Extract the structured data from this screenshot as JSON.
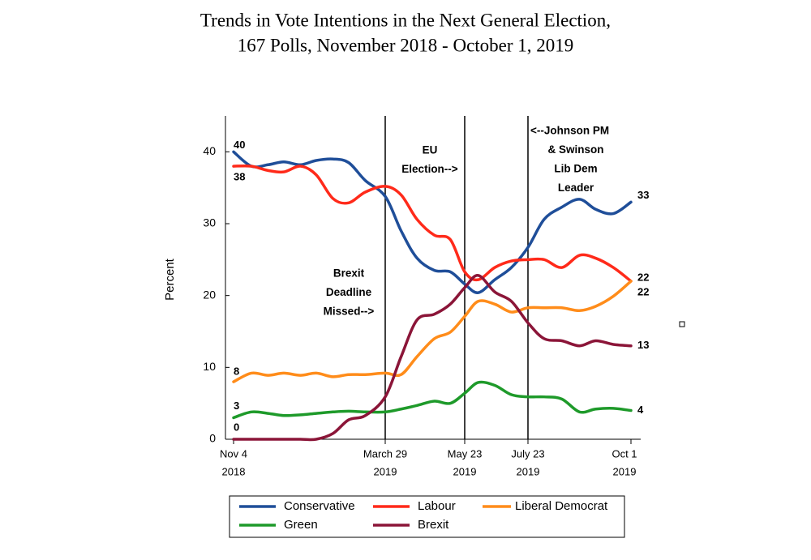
{
  "chart_data": {
    "type": "line",
    "title": "Trends in Vote Intentions in the Next General Election,",
    "subtitle": "167 Polls, November 2018 - October 1, 2019",
    "y_label": "Percent",
    "x": [
      "2018-11-04",
      "2018-11-21",
      "2018-12-07",
      "2018-12-22",
      "2019-01-07",
      "2019-01-22",
      "2019-02-07",
      "2019-02-22",
      "2019-03-10",
      "2019-03-29",
      "2019-04-09",
      "2019-04-20",
      "2019-05-02",
      "2019-05-13",
      "2019-05-23",
      "2019-06-05",
      "2019-06-21",
      "2019-07-07",
      "2019-07-23",
      "2019-08-03",
      "2019-08-15",
      "2019-08-27",
      "2019-09-07",
      "2019-09-19",
      "2019-10-01"
    ],
    "series": [
      {
        "name": "Conservative",
        "color": "#1f4e99",
        "values": [
          40,
          38,
          38.2,
          38.6,
          38.2,
          38.8,
          39,
          38.5,
          36,
          33.8,
          29,
          25.2,
          23.5,
          23.3,
          21.6,
          20.4,
          22.2,
          23.9,
          26.7,
          30.6,
          32.3,
          33.4,
          32,
          31.4,
          33
        ]
      },
      {
        "name": "Labour",
        "color": "#ff2a1a",
        "values": [
          38,
          38,
          37.4,
          37.2,
          38,
          36.8,
          33.5,
          32.9,
          34.4,
          35.2,
          34,
          30.6,
          28.4,
          27.8,
          23.3,
          22.2,
          23.9,
          24.8,
          25,
          25,
          23.9,
          25.6,
          25.2,
          23.9,
          22
        ]
      },
      {
        "name": "Liberal Democrat",
        "color": "#ff8c1a",
        "values": [
          8,
          9.2,
          8.9,
          9.2,
          8.9,
          9.2,
          8.7,
          9,
          9,
          9.2,
          9,
          11.5,
          14,
          14.9,
          17.1,
          19.2,
          18.8,
          17.7,
          18.3,
          18.3,
          18.3,
          17.9,
          18.5,
          19.9,
          22
        ]
      },
      {
        "name": "Green",
        "color": "#1e9a2a",
        "values": [
          3,
          3.8,
          3.6,
          3.3,
          3.4,
          3.6,
          3.8,
          3.9,
          3.8,
          3.8,
          4.2,
          4.7,
          5.3,
          5,
          6.4,
          7.9,
          7.5,
          6.2,
          5.9,
          5.9,
          5.6,
          3.8,
          4.2,
          4.3,
          4
        ]
      },
      {
        "name": "Brexit",
        "color": "#8b1538",
        "values": [
          0,
          0,
          0,
          0,
          0,
          0,
          0.8,
          2.7,
          3.3,
          5.9,
          11.5,
          16.6,
          17.4,
          18.8,
          21.1,
          22.8,
          20.5,
          19.2,
          16.2,
          14,
          13.7,
          13,
          13.7,
          13.2,
          13
        ]
      }
    ],
    "xticks": [
      {
        "value": "2018-11-04",
        "label": [
          "Nov 4",
          "2018"
        ]
      },
      {
        "value": "2019-03-29",
        "label": [
          "March 29",
          "2019"
        ]
      },
      {
        "value": "2019-05-23",
        "label": [
          "May 23",
          "2019"
        ]
      },
      {
        "value": "2019-07-23",
        "label": [
          "July 23",
          "2019"
        ]
      },
      {
        "value": "2019-10-01",
        "label": [
          "Oct 1",
          "2019"
        ]
      }
    ],
    "ylim": [
      0,
      45
    ],
    "yticks": [
      0,
      10,
      20,
      30,
      40
    ],
    "vlines": [
      "2019-03-29",
      "2019-05-23",
      "2019-07-23"
    ],
    "annotations": [
      [
        "Brexit",
        "Deadline",
        "Missed-->"
      ],
      [
        "EU",
        "Election-->"
      ],
      [
        "<--Johnson PM",
        "& Swinson",
        "Lib Dem",
        "Leader"
      ]
    ]
  }
}
